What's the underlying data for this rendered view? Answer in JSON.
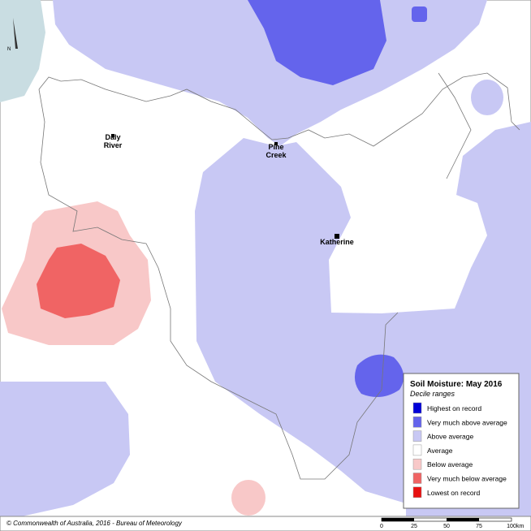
{
  "places": [
    {
      "lines": [
        "Daly",
        "River"
      ]
    },
    {
      "lines": [
        "Pine",
        "Creek"
      ]
    },
    {
      "lines": [
        "Katherine"
      ]
    }
  ],
  "legend": {
    "title": "Soil Moisture: May 2016",
    "subtitle": "Decile ranges",
    "items": [
      {
        "label": "Highest on record",
        "color": "#0000d8"
      },
      {
        "label": "Very much above average",
        "color": "#6464ec"
      },
      {
        "label": "Above average",
        "color": "#c8c8f4"
      },
      {
        "label": "Average",
        "color": "#ffffff"
      },
      {
        "label": "Below average",
        "color": "#f8c8c8"
      },
      {
        "label": "Very much below average",
        "color": "#f06464"
      },
      {
        "label": "Lowest on record",
        "color": "#e81010"
      }
    ]
  },
  "credit": "© Commonwealth of Australia, 2016 - Bureau of Meteorology",
  "scale": {
    "ticks": [
      "0",
      "25",
      "50",
      "75",
      "100"
    ],
    "unit": "km"
  }
}
